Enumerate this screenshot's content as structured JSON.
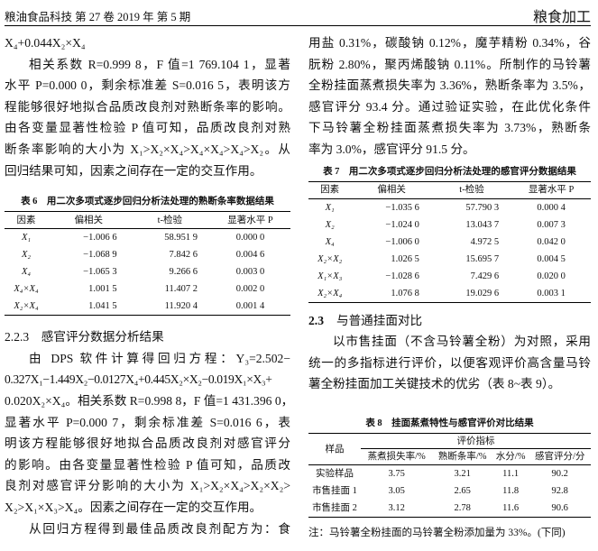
{
  "header": {
    "journal": "粮油食品科技 第 27 卷 2019 年 第 5 期",
    "section": "粮食加工"
  },
  "left": {
    "para1": [
      "X₄+0.044X₂×X₄",
      "相关系数 R=0.999 8，F 值=1 769.104 1，显著",
      "水平 P=0.000 0，剩余标准差 S=0.016 5，表明该方",
      "程能够很好地拟合品质改良剂对熟断条率的影响。",
      "由各变量显著性检验 P 值可知，品质改良剂对熟",
      "断条率影响的大小为 X₁>X₂×X₄>X₄×X₄>X₄>X₂。从",
      "回归结果可知，因素之间存在一定的交互作用。"
    ],
    "table6": {
      "caption": "表 6　用二次多项式逐步回归分析法处理的熟断条率数据结果",
      "headers": [
        "因素",
        "偏相关",
        "t-检验",
        "显著水平 P"
      ],
      "rows": [
        [
          "X₁",
          "−1.006 6",
          "58.951 9",
          "0.000 0"
        ],
        [
          "X₂",
          "−1.068 9",
          "7.842 6",
          "0.004 6"
        ],
        [
          "X₄",
          "−1.065 3",
          "9.266 6",
          "0.003 0"
        ],
        [
          "X₄×X₄",
          "1.001 5",
          "11.407 2",
          "0.002 0"
        ],
        [
          "X₂×X₄",
          "1.041 5",
          "11.920 4",
          "0.001 4"
        ]
      ]
    },
    "heading": "2.2.3　感官评分数据分析结果",
    "para2": [
      "由 DPS 软件计算得回归方程：Y₃=2.502−",
      "0.327X₁−1.449X₂−0.0127X₄+0.445X₂×X₂−0.019X₁×X₃+",
      "0.020X₂×X₄。相关系数 R=0.998 8，F 值=1 431.396 0，",
      "显著水平 P=0.000 7，剩余标准差 S=0.016 6，表",
      "明该方程能够很好地拟合品质改良剂对感官评分",
      "的影响。由各变量显著性检验 P 值可知，品质改",
      "良剂对感官评分影响的大小为 X₁>X₂×X₄>X₂×X₂>",
      "X₂>X₁×X₃>X₄。因素之间存在一定的交互作用。"
    ],
    "para3": [
      "从回归方程得到最佳品质改良剂配方为：食"
    ]
  },
  "right": {
    "para1": [
      "用盐 0.31%，碳酸钠 0.12%，魔芋精粉 0.34%，谷",
      "朊粉 2.80%，聚丙烯酸钠 0.11%。所制作的马铃薯",
      "全粉挂面蒸煮损失率为 3.36%，熟断条率为 3.5%，",
      "感官评分 93.4 分。通过验证实验，在此优化条件",
      "下马铃薯全粉挂面蒸煮损失率为 3.73%，熟断条",
      "率为 3.0%，感官评分 91.5 分。"
    ],
    "table7": {
      "caption": "表 7　用二次多项式逐步回归分析法处理的感官评分数据结果",
      "headers": [
        "因素",
        "偏相关",
        "t-检验",
        "显著水平 P"
      ],
      "rows": [
        [
          "X₁",
          "−1.035 6",
          "57.790 3",
          "0.000 4"
        ],
        [
          "X₂",
          "−1.024 0",
          "13.043 7",
          "0.007 3"
        ],
        [
          "X₄",
          "−1.006 0",
          "4.972 5",
          "0.042 0"
        ],
        [
          "X₂×X₂",
          "1.026 5",
          "15.695 7",
          "0.004 5"
        ],
        [
          "X₁×X₃",
          "−1.028 6",
          "7.429 6",
          "0.020 0"
        ],
        [
          "X₂×X₄",
          "1.076 8",
          "19.029 6",
          "0.003 1"
        ]
      ]
    },
    "heading_num": "2.3",
    "heading_text": "与普通挂面对比",
    "para2": [
      "以市售挂面（不含马铃薯全粉）为对照，采用",
      "统一的多指标进行评价，以便客观评价高含量马铃",
      "薯全粉挂面加工关键技术的优劣（表 8~表 9）。"
    ],
    "table8": {
      "caption": "表 8　挂面蒸煮特性与感官评价对比结果",
      "sample_header": "样品",
      "group_header": "评价指标",
      "headers": [
        "蒸煮损失率/%",
        "熟断条率/%",
        "水分/%",
        "感官评分/分"
      ],
      "rows": [
        [
          "实验样品",
          "3.75",
          "3.21",
          "11.1",
          "90.2"
        ],
        [
          "市售挂面 1",
          "3.05",
          "2.65",
          "11.8",
          "92.8"
        ],
        [
          "市售挂面 2",
          "3.12",
          "2.78",
          "11.6",
          "90.6"
        ]
      ],
      "note": "注：马铃薯全粉挂面的马铃薯全粉添加量为 33%。(下同)"
    }
  }
}
